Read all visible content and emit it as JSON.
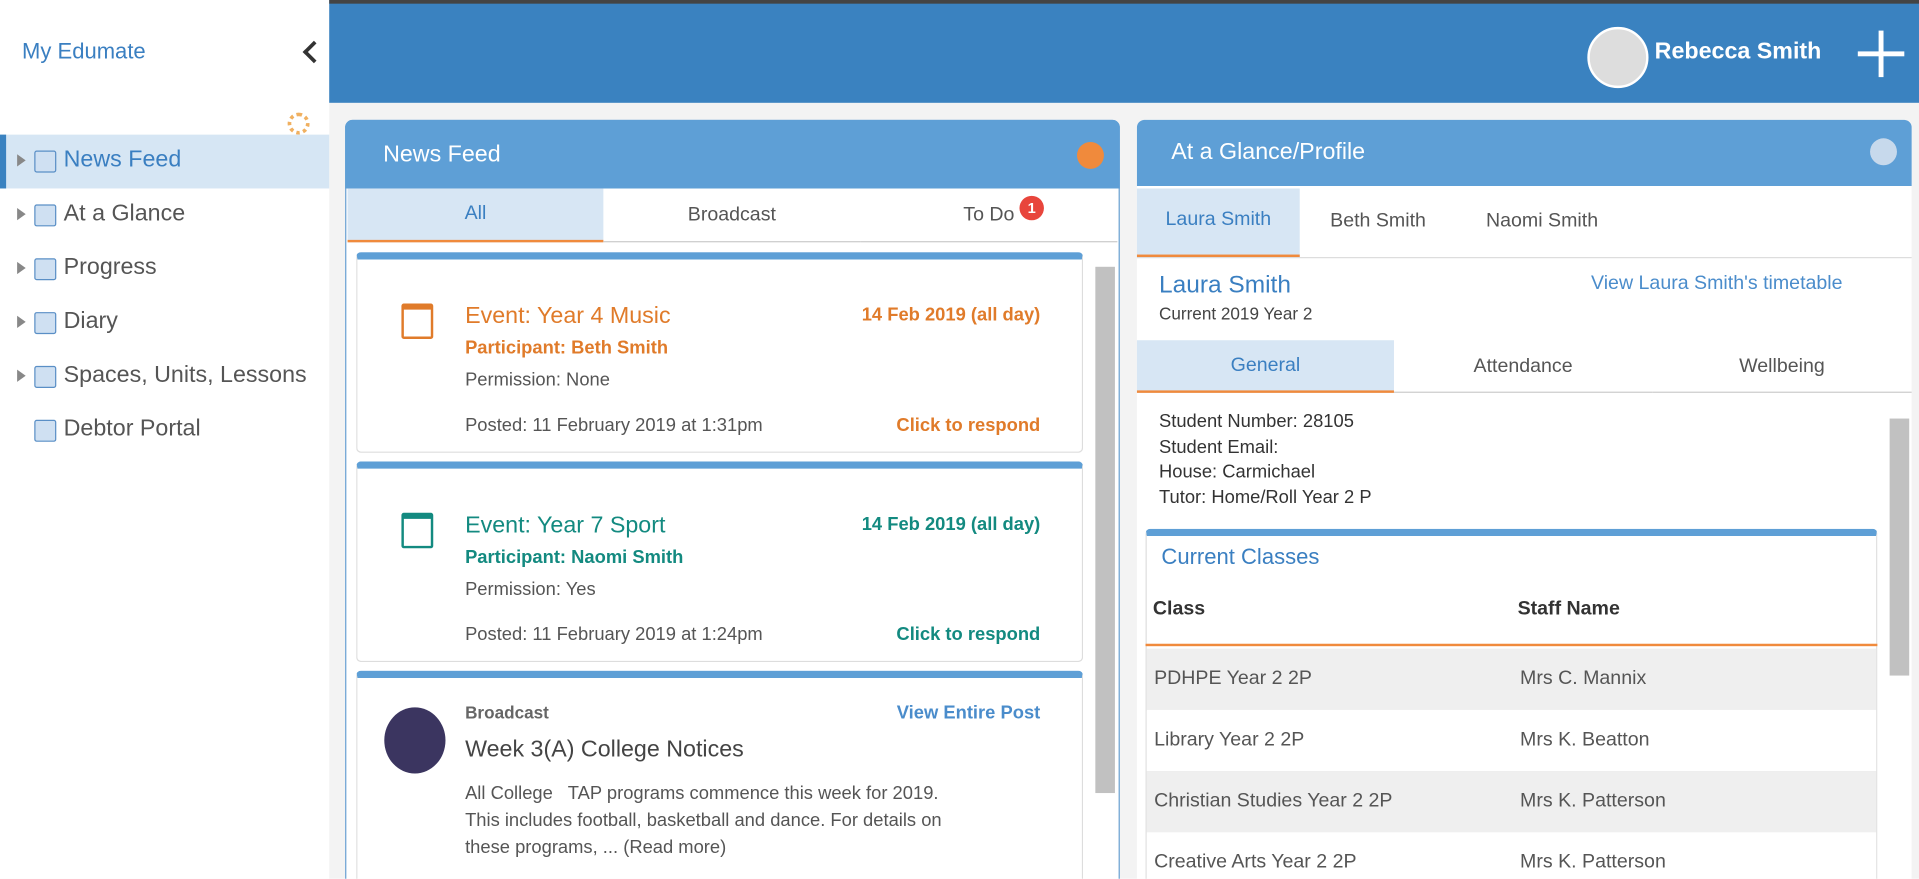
{
  "sidebar": {
    "title": "My Edumate",
    "menu": [
      "News Feed",
      "At a Glance",
      "Progress",
      "Diary",
      "Spaces, Units, Lessons",
      "Debtor Portal"
    ]
  },
  "header": {
    "user": "Rebecca Smith"
  },
  "news_feed": {
    "title": "News Feed",
    "tabs": [
      "All",
      "Broadcast",
      "To Do"
    ],
    "todo_badge": "1",
    "events": [
      {
        "title": "Event: Year 4 Music",
        "date": "14 Feb 2019 (all day)",
        "participant": "Participant: Beth Smith",
        "permission": "Permission: None",
        "posted": "Posted: 11 February 2019 at 1:31pm",
        "action": "Click to respond"
      },
      {
        "title": "Event: Year 7 Sport",
        "date": "14 Feb 2019 (all day)",
        "participant": "Participant: Naomi Smith",
        "permission": "Permission: Yes",
        "posted": "Posted: 11 February 2019 at 1:24pm",
        "action": "Click to respond"
      }
    ],
    "broadcast": {
      "label": "Broadcast",
      "link": "View Entire Post",
      "title": "Week 3(A) College Notices",
      "body": "All College   TAP programs commence this week for 2019. This includes football, basketball and dance. For details on these programs, ... (Read more)"
    }
  },
  "glance": {
    "title": "At a Glance/Profile",
    "students": [
      "Laura Smith",
      "Beth Smith",
      "Naomi Smith"
    ],
    "name": "Laura Smith",
    "year": "Current 2019 Year 2",
    "timetable_link": "View Laura Smith's timetable",
    "subtabs": [
      "General",
      "Attendance",
      "Wellbeing"
    ],
    "details": [
      "Student Number: 28105",
      "Student Email:",
      "House: Carmichael",
      "Tutor: Home/Roll Year 2 P"
    ],
    "classes": {
      "title": "Current Classes",
      "headers": [
        "Class",
        "Staff Name"
      ],
      "rows": [
        [
          "PDHPE Year 2 2P",
          "Mrs C. Mannix"
        ],
        [
          "Library Year 2 2P",
          "Mrs K. Beatton"
        ],
        [
          "Christian Studies Year 2 2P",
          "Mrs K. Patterson"
        ],
        [
          "Creative Arts Year 2 2P",
          "Mrs K. Patterson"
        ]
      ]
    }
  }
}
